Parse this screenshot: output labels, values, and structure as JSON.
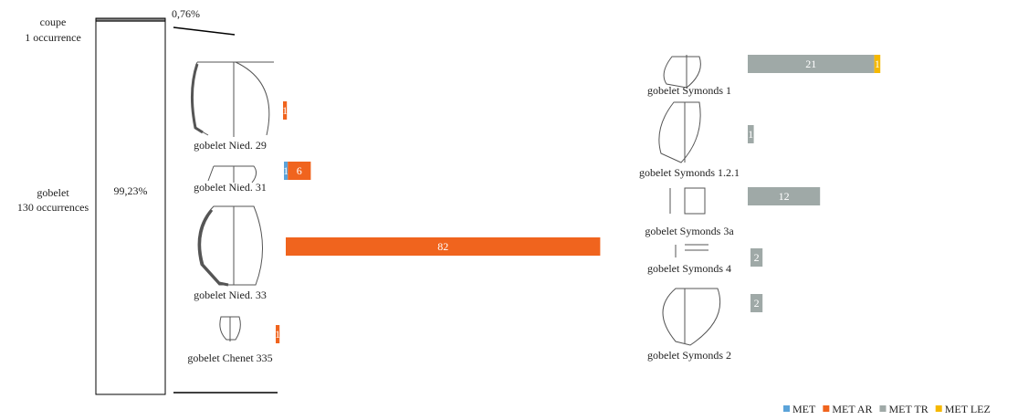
{
  "chart_data": {
    "type": "bar",
    "orientation": "horizontal",
    "stacked": true,
    "groups": [
      {
        "name": "coupe",
        "label": "1 occurrence",
        "share": 0.76,
        "share_label": "0,76%"
      },
      {
        "name": "gobelet",
        "label": "130 occurrences",
        "share": 99.23,
        "share_label": "99,23%"
      }
    ],
    "categories": [
      "gobelet Nied. 29",
      "gobelet Nied. 31",
      "gobelet Nied. 33",
      "gobelet Chenet 335",
      "gobelet Symonds 1",
      "gobelet Symonds 1.2.1",
      "gobelet Symonds 3a",
      "gobelet Symonds 4",
      "gobelet Symonds 2"
    ],
    "series": [
      {
        "name": "MET",
        "color": "#5ba3d9",
        "values": [
          null,
          1,
          null,
          null,
          null,
          null,
          null,
          null,
          null
        ]
      },
      {
        "name": "MET AR",
        "color": "#f0641e",
        "values": [
          1,
          6,
          82,
          1,
          null,
          null,
          null,
          null,
          null
        ]
      },
      {
        "name": "MET TR",
        "color": "#9fa9a7",
        "values": [
          null,
          null,
          null,
          null,
          21,
          1,
          12,
          2,
          2
        ]
      },
      {
        "name": "MET LEZ",
        "color": "#f5b800",
        "values": [
          null,
          null,
          null,
          null,
          1,
          null,
          null,
          null,
          null
        ]
      }
    ],
    "legend": "bottom-right"
  }
}
